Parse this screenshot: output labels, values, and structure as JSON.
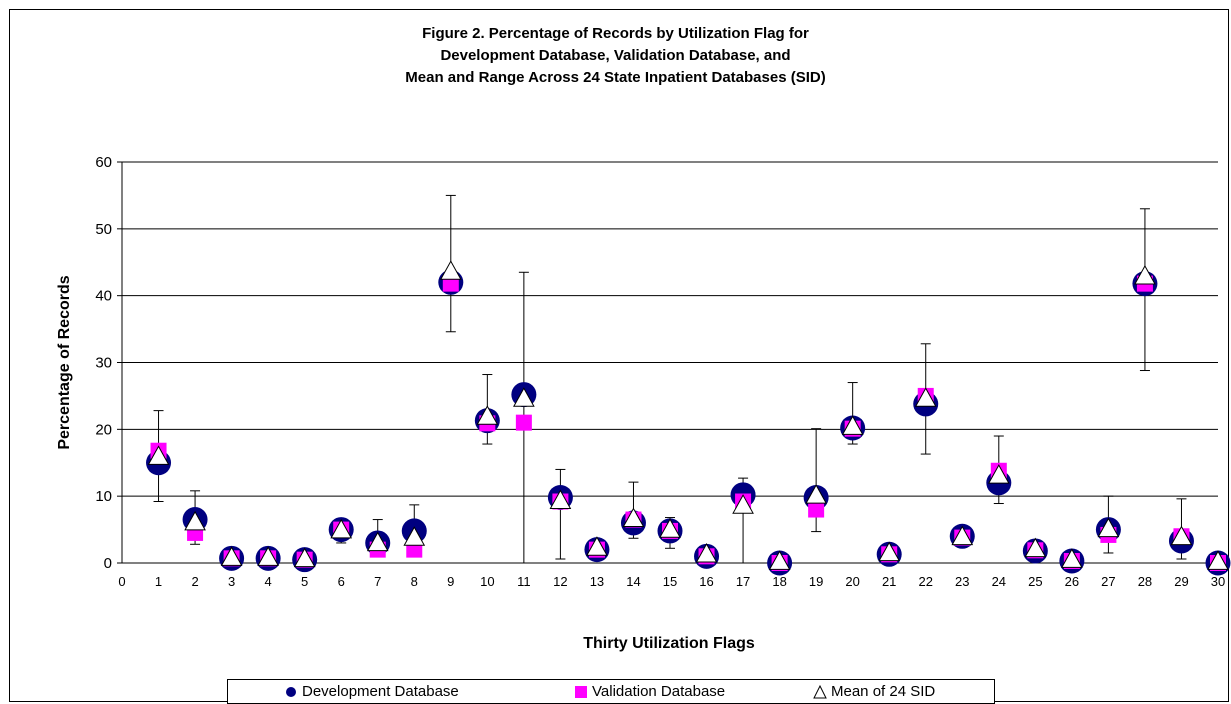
{
  "title_lines": [
    "Figure 2. Percentage of Records by Utilization Flag for",
    "Development Database, Validation Database, and",
    "Mean and Range Across 24 State Inpatient Databases (SID)"
  ],
  "colors": {
    "development": "#000080",
    "validation": "#ff00ff",
    "mean": "#ffffff",
    "axis": "#000000",
    "grid": "#000000"
  },
  "icons": {
    "development": "filled-circle-icon",
    "validation": "filled-square-icon",
    "mean": "open-triangle-icon"
  },
  "legend": {
    "development": "Development Database",
    "validation": "Validation Database",
    "mean": "Mean of 24 SID"
  },
  "chart_data": {
    "type": "scatter",
    "title": "Figure 2. Percentage of Records by Utilization Flag for Development Database, Validation Database, and Mean and Range Across 24 State Inpatient Databases (SID)",
    "xlabel": "Thirty Utilization Flags",
    "ylabel": "Percentage of Records",
    "xlim": [
      0,
      30
    ],
    "ylim": [
      0,
      60
    ],
    "x_ticks": [
      0,
      1,
      2,
      3,
      4,
      5,
      6,
      7,
      8,
      9,
      10,
      11,
      12,
      13,
      14,
      15,
      16,
      17,
      18,
      19,
      20,
      21,
      22,
      23,
      24,
      25,
      26,
      27,
      28,
      29,
      30
    ],
    "y_ticks": [
      0,
      10,
      20,
      30,
      40,
      50,
      60
    ],
    "grid": "horizontal",
    "legend_position": "bottom",
    "x": [
      1,
      2,
      3,
      4,
      5,
      6,
      7,
      8,
      9,
      10,
      11,
      12,
      13,
      14,
      15,
      16,
      17,
      18,
      19,
      20,
      21,
      22,
      23,
      24,
      25,
      26,
      27,
      28,
      29,
      30
    ],
    "series": [
      {
        "name": "Development Database",
        "marker": "circle",
        "values": [
          15,
          6.5,
          0.7,
          0.7,
          0.5,
          5,
          3,
          4.8,
          42,
          21.3,
          25.2,
          9.8,
          2,
          6,
          4.8,
          1,
          10.2,
          0,
          9.8,
          20.2,
          1.3,
          23.8,
          4,
          12,
          1.8,
          0.3,
          5,
          41.8,
          3.3,
          0
        ]
      },
      {
        "name": "Validation Database",
        "marker": "square",
        "values": [
          16.8,
          4.5,
          0.7,
          0.7,
          0.5,
          5,
          2,
          2,
          41.8,
          20.9,
          21,
          9.2,
          2,
          6.5,
          4.8,
          1,
          9.2,
          0,
          8,
          20.1,
          1.3,
          25,
          3.8,
          13.8,
          1.9,
          0.3,
          4.2,
          41.8,
          4,
          0
        ]
      },
      {
        "name": "Mean of 24 SID",
        "marker": "triangle",
        "values": [
          15.8,
          6,
          0.7,
          0.7,
          0.5,
          4.8,
          2.9,
          3.7,
          43.5,
          21.8,
          24.5,
          9.2,
          2.2,
          6.5,
          4.9,
          1.2,
          8.5,
          0.1,
          10,
          20.3,
          1.4,
          24.5,
          3.8,
          13,
          2,
          0.4,
          5,
          42.8,
          3.8,
          0.1
        ]
      }
    ],
    "range_low": [
      9.2,
      2.8,
      0,
      0,
      0,
      3,
      1.3,
      2.3,
      34.6,
      17.8,
      0,
      0.6,
      1.3,
      3.7,
      2.2,
      0.5,
      0,
      0,
      4.7,
      17.8,
      0.5,
      16.3,
      2.8,
      8.9,
      1,
      0,
      1.5,
      28.8,
      0.6,
      0
    ],
    "range_high": [
      22.8,
      10.8,
      1.4,
      1.2,
      1.1,
      6.4,
      6.5,
      8.7,
      55,
      28.2,
      43.5,
      14,
      3.2,
      12.1,
      6.8,
      1.6,
      12.7,
      0.3,
      20.1,
      27,
      2.1,
      32.8,
      4.9,
      19,
      2.6,
      0.9,
      10,
      53,
      9.6,
      0.3
    ]
  }
}
